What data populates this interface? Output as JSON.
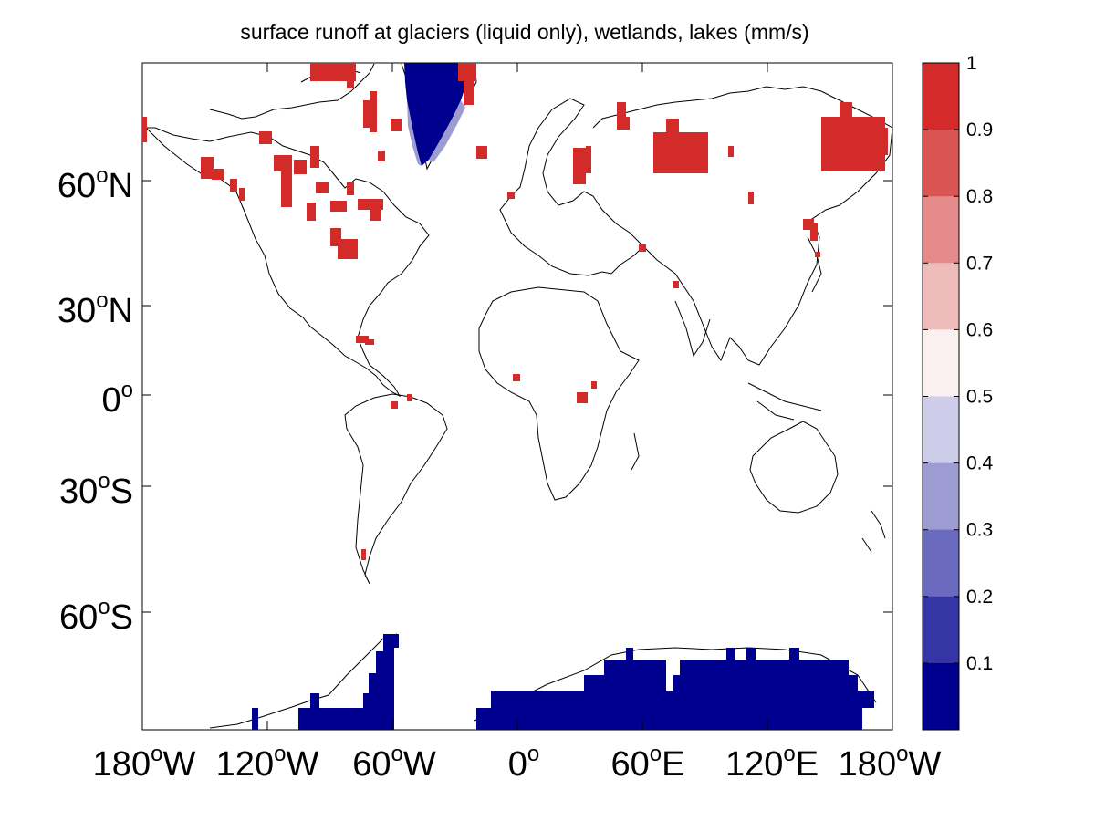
{
  "title": "surface runoff at glaciers (liquid only), wetlands, lakes (mm/s)",
  "lat_ticks": [
    {
      "deg": "60",
      "hemi": "N",
      "lat": 60
    },
    {
      "deg": "30",
      "hemi": "N",
      "lat": 30
    },
    {
      "deg": "0",
      "hemi": "",
      "lat": 0
    },
    {
      "deg": "30",
      "hemi": "S",
      "lat": -30
    },
    {
      "deg": "60",
      "hemi": "S",
      "lat": -60
    }
  ],
  "lon_ticks": [
    {
      "deg": "180",
      "hemi": "W",
      "lon": -180
    },
    {
      "deg": "120",
      "hemi": "W",
      "lon": -120
    },
    {
      "deg": "60",
      "hemi": "W",
      "lon": -60
    },
    {
      "deg": "0",
      "hemi": "",
      "lon": 0
    },
    {
      "deg": "60",
      "hemi": "E",
      "lon": 60
    },
    {
      "deg": "120",
      "hemi": "E",
      "lon": 120
    },
    {
      "deg": "180",
      "hemi": "W",
      "lon": 180
    }
  ],
  "colorbar": {
    "min": 0,
    "max": 1,
    "tick_labels": [
      "1",
      "0.9",
      "0.8",
      "0.7",
      "0.6",
      "0.5",
      "0.4",
      "0.3",
      "0.2",
      "0.1"
    ],
    "tick_values": [
      1,
      0.9,
      0.8,
      0.7,
      0.6,
      0.5,
      0.4,
      0.3,
      0.2,
      0.1
    ],
    "colors_top_to_bottom": [
      "#d32a2a",
      "#db5454",
      "#e48a8a",
      "#efbcbc",
      "#fbf0f0",
      "#cdcdea",
      "#9c9cd3",
      "#6a6abe",
      "#3535a6",
      "#00008e"
    ]
  },
  "regions": [
    {
      "name": "antarctica-peninsula",
      "value": 0.0
    },
    {
      "name": "antarctica-east",
      "value": 0.0
    },
    {
      "name": "greenland",
      "value": 0.0
    },
    {
      "name": "arctic-canada",
      "value": 1.0
    },
    {
      "name": "alaska",
      "value": 1.0
    },
    {
      "name": "hudson-bay-lowlands",
      "value": 1.0
    },
    {
      "name": "west-siberia",
      "value": 1.0
    },
    {
      "name": "east-siberia",
      "value": 1.0
    },
    {
      "name": "scandinavia",
      "value": 1.0
    },
    {
      "name": "caspian",
      "value": 1.0
    },
    {
      "name": "east-africa-lakes",
      "value": 1.0
    },
    {
      "name": "caribbean",
      "value": 1.0
    }
  ]
}
